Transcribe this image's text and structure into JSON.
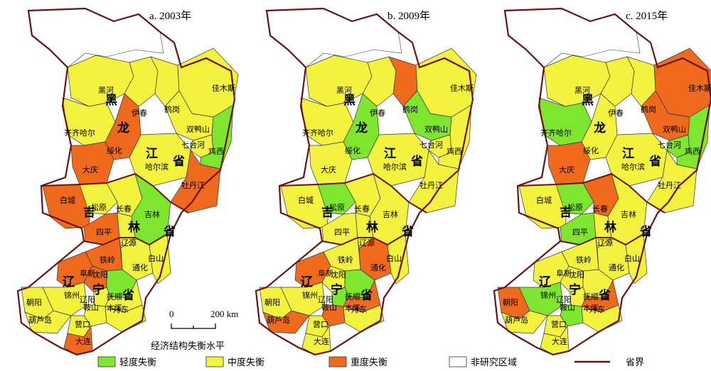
{
  "colors": {
    "light": "#7ee62f",
    "moderate": "#f3f33f",
    "severe": "#ef6a1c",
    "none": "#ffffff",
    "boundary": "#6b1111",
    "cityline": "#333333"
  },
  "panels": [
    {
      "title": "a. 2003年",
      "provinces": {
        "hlj": "黑",
        "hlj2": "龙",
        "hlj3": "江",
        "hlj4": "省",
        "jl": "吉",
        "jl2": "林",
        "jl3": "省",
        "ln": "辽",
        "ln2": "宁",
        "ln3": "省"
      },
      "regions": [
        {
          "name": "黑河",
          "level": "moderate"
        },
        {
          "name": "伊春",
          "level": "moderate"
        },
        {
          "name": "鹤岗",
          "level": "moderate"
        },
        {
          "name": "佳木斯",
          "level": "moderate"
        },
        {
          "name": "齐齐哈尔",
          "level": "moderate"
        },
        {
          "name": "绥化",
          "level": "severe"
        },
        {
          "name": "双鸭山",
          "level": "moderate"
        },
        {
          "name": "七台河",
          "level": "moderate"
        },
        {
          "name": "鸡西",
          "level": "light"
        },
        {
          "name": "大庆",
          "level": "severe"
        },
        {
          "name": "哈尔滨",
          "level": "moderate"
        },
        {
          "name": "牡丹江",
          "level": "severe"
        },
        {
          "name": "白城",
          "level": "severe"
        },
        {
          "name": "松原",
          "level": "moderate"
        },
        {
          "name": "长春",
          "level": "moderate"
        },
        {
          "name": "吉林",
          "level": "light"
        },
        {
          "name": "四平",
          "level": "severe"
        },
        {
          "name": "辽源",
          "level": "moderate"
        },
        {
          "name": "通化",
          "level": "moderate"
        },
        {
          "name": "白山",
          "level": "moderate"
        },
        {
          "name": "铁岭",
          "level": "severe"
        },
        {
          "name": "阜新",
          "level": "severe"
        },
        {
          "name": "沈阳",
          "level": "severe"
        },
        {
          "name": "抚顺",
          "level": "light"
        },
        {
          "name": "锦州",
          "level": "moderate"
        },
        {
          "name": "辽阳",
          "level": "moderate"
        },
        {
          "name": "本溪",
          "level": "moderate"
        },
        {
          "name": "朝阳",
          "level": "moderate"
        },
        {
          "name": "鞍山",
          "level": "moderate"
        },
        {
          "name": "丹东",
          "level": "moderate"
        },
        {
          "name": "葫芦岛",
          "level": "moderate"
        },
        {
          "name": "营口",
          "level": "moderate"
        },
        {
          "name": "大连",
          "level": "severe"
        }
      ]
    },
    {
      "title": "b. 2009年",
      "provinces": {
        "hlj": "黑",
        "hlj2": "龙",
        "hlj3": "江",
        "hlj4": "省",
        "jl": "吉",
        "jl2": "林",
        "jl3": "省",
        "ln": "辽",
        "ln2": "宁",
        "ln3": "省"
      },
      "regions": [
        {
          "name": "黑河",
          "level": "moderate"
        },
        {
          "name": "伊春",
          "level": "moderate"
        },
        {
          "name": "鹤岗",
          "level": "severe"
        },
        {
          "name": "佳木斯",
          "level": "moderate"
        },
        {
          "name": "齐齐哈尔",
          "level": "moderate"
        },
        {
          "name": "绥化",
          "level": "light"
        },
        {
          "name": "双鸭山",
          "level": "light"
        },
        {
          "name": "七台河",
          "level": "moderate"
        },
        {
          "name": "鸡西",
          "level": "moderate"
        },
        {
          "name": "大庆",
          "level": "moderate"
        },
        {
          "name": "哈尔滨",
          "level": "moderate"
        },
        {
          "name": "牡丹江",
          "level": "moderate"
        },
        {
          "name": "白城",
          "level": "moderate"
        },
        {
          "name": "松原",
          "level": "light"
        },
        {
          "name": "长春",
          "level": "moderate"
        },
        {
          "name": "吉林",
          "level": "moderate"
        },
        {
          "name": "四平",
          "level": "moderate"
        },
        {
          "name": "辽源",
          "level": "moderate"
        },
        {
          "name": "通化",
          "level": "severe"
        },
        {
          "name": "白山",
          "level": "moderate"
        },
        {
          "name": "铁岭",
          "level": "moderate"
        },
        {
          "name": "阜新",
          "level": "severe"
        },
        {
          "name": "沈阳",
          "level": "moderate"
        },
        {
          "name": "抚顺",
          "level": "light"
        },
        {
          "name": "锦州",
          "level": "moderate"
        },
        {
          "name": "辽阳",
          "level": "light"
        },
        {
          "name": "本溪",
          "level": "severe"
        },
        {
          "name": "朝阳",
          "level": "moderate"
        },
        {
          "name": "鞍山",
          "level": "severe"
        },
        {
          "name": "丹东",
          "level": "moderate"
        },
        {
          "name": "葫芦岛",
          "level": "severe"
        },
        {
          "name": "营口",
          "level": "moderate"
        },
        {
          "name": "大连",
          "level": "moderate"
        }
      ]
    },
    {
      "title": "c. 2015年",
      "provinces": {
        "hlj": "黑",
        "hlj2": "龙",
        "hlj3": "江",
        "hlj4": "省",
        "jl": "吉",
        "jl2": "林",
        "jl3": "省",
        "ln": "辽",
        "ln2": "宁",
        "ln3": "省"
      },
      "regions": [
        {
          "name": "黑河",
          "level": "moderate"
        },
        {
          "name": "伊春",
          "level": "moderate"
        },
        {
          "name": "鹤岗",
          "level": "moderate"
        },
        {
          "name": "佳木斯",
          "level": "severe"
        },
        {
          "name": "齐齐哈尔",
          "level": "light"
        },
        {
          "name": "绥化",
          "level": "moderate"
        },
        {
          "name": "双鸭山",
          "level": "severe"
        },
        {
          "name": "七台河",
          "level": "light"
        },
        {
          "name": "鸡西",
          "level": "light"
        },
        {
          "name": "大庆",
          "level": "severe"
        },
        {
          "name": "哈尔滨",
          "level": "moderate"
        },
        {
          "name": "牡丹江",
          "level": "moderate"
        },
        {
          "name": "白城",
          "level": "moderate"
        },
        {
          "name": "松原",
          "level": "light"
        },
        {
          "name": "长春",
          "level": "severe"
        },
        {
          "name": "吉林",
          "level": "moderate"
        },
        {
          "name": "四平",
          "level": "light"
        },
        {
          "name": "辽源",
          "level": "moderate"
        },
        {
          "name": "通化",
          "level": "moderate"
        },
        {
          "name": "白山",
          "level": "moderate"
        },
        {
          "name": "铁岭",
          "level": "moderate"
        },
        {
          "name": "阜新",
          "level": "moderate"
        },
        {
          "name": "沈阳",
          "level": "moderate"
        },
        {
          "name": "抚顺",
          "level": "moderate"
        },
        {
          "name": "锦州",
          "level": "light"
        },
        {
          "name": "辽阳",
          "level": "moderate"
        },
        {
          "name": "本溪",
          "level": "severe"
        },
        {
          "name": "朝阳",
          "level": "severe"
        },
        {
          "name": "鞍山",
          "level": "light"
        },
        {
          "name": "丹东",
          "level": "moderate"
        },
        {
          "name": "葫芦岛",
          "level": "moderate"
        },
        {
          "name": "营口",
          "level": "moderate"
        },
        {
          "name": "大连",
          "level": "moderate"
        }
      ]
    }
  ],
  "scale": {
    "zero": "0",
    "distance": "200 km",
    "caption": "经济结构失衡水平"
  },
  "legend": [
    {
      "label": "轻度失衡",
      "key": "light"
    },
    {
      "label": "中度失衡",
      "key": "moderate"
    },
    {
      "label": "重度失衡",
      "key": "severe"
    },
    {
      "label": "非研究区域",
      "key": "none"
    },
    {
      "label": "省界",
      "key": "boundary"
    }
  ]
}
